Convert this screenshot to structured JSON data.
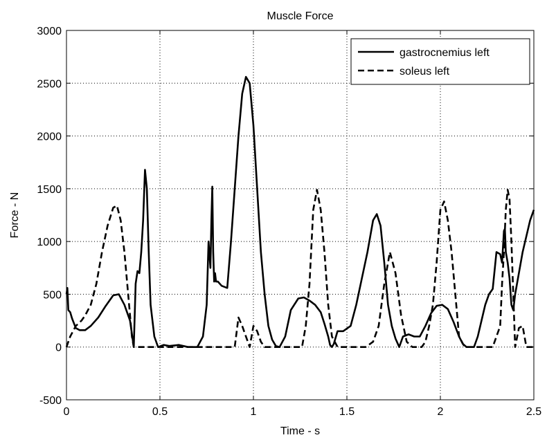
{
  "chart_data": {
    "type": "line",
    "title": "Muscle Force",
    "xlabel": "Time - s",
    "ylabel": "Force - N",
    "xlim": [
      0,
      2.5
    ],
    "ylim": [
      -500,
      3000
    ],
    "xticks": [
      0,
      0.5,
      1,
      1.5,
      2,
      2.5
    ],
    "xtick_labels": [
      "0",
      "0.5",
      "1",
      "1.5",
      "2",
      "2.5"
    ],
    "yticks": [
      -500,
      0,
      500,
      1000,
      1500,
      2000,
      2500,
      3000
    ],
    "ytick_labels": [
      "-500",
      "0",
      "500",
      "1000",
      "1500",
      "2000",
      "2500",
      "3000"
    ],
    "grid": true,
    "legend_position": "top-right",
    "series": [
      {
        "name": "gastrocnemius left",
        "style": "solid",
        "color": "#000000",
        "x": [
          0,
          0.005,
          0.01,
          0.02,
          0.03,
          0.05,
          0.07,
          0.1,
          0.13,
          0.17,
          0.21,
          0.25,
          0.28,
          0.31,
          0.34,
          0.36,
          0.37,
          0.38,
          0.39,
          0.4,
          0.41,
          0.42,
          0.43,
          0.44,
          0.45,
          0.47,
          0.49,
          0.52,
          0.55,
          0.6,
          0.65,
          0.7,
          0.73,
          0.75,
          0.76,
          0.77,
          0.775,
          0.78,
          0.785,
          0.79,
          0.795,
          0.8,
          0.81,
          0.83,
          0.86,
          0.88,
          0.9,
          0.92,
          0.94,
          0.96,
          0.98,
          0.99,
          1.0,
          1.02,
          1.04,
          1.06,
          1.08,
          1.1,
          1.12,
          1.14,
          1.17,
          1.2,
          1.24,
          1.27,
          1.3,
          1.33,
          1.36,
          1.38,
          1.4,
          1.41,
          1.42,
          1.43,
          1.45,
          1.48,
          1.52,
          1.55,
          1.58,
          1.61,
          1.64,
          1.66,
          1.68,
          1.7,
          1.72,
          1.74,
          1.76,
          1.78,
          1.8,
          1.83,
          1.86,
          1.89,
          1.92,
          1.95,
          1.98,
          2.01,
          2.04,
          2.07,
          2.1,
          2.12,
          2.14,
          2.16,
          2.18,
          2.2,
          2.22,
          2.24,
          2.26,
          2.28,
          2.3,
          2.32,
          2.33,
          2.34,
          2.345,
          2.35,
          2.36,
          2.37,
          2.38,
          2.39,
          2.4,
          2.42,
          2.44,
          2.46,
          2.48,
          2.5
        ],
        "y": [
          500,
          560,
          350,
          330,
          270,
          180,
          160,
          160,
          200,
          280,
          390,
          490,
          500,
          400,
          250,
          0,
          600,
          720,
          700,
          900,
          1200,
          1680,
          1500,
          900,
          400,
          100,
          0,
          20,
          10,
          20,
          0,
          0,
          100,
          400,
          1000,
          750,
          1200,
          1520,
          900,
          620,
          700,
          620,
          620,
          580,
          560,
          1000,
          1500,
          2000,
          2400,
          2560,
          2500,
          2300,
          2100,
          1500,
          900,
          500,
          200,
          70,
          10,
          0,
          100,
          350,
          460,
          470,
          440,
          400,
          330,
          220,
          100,
          20,
          0,
          30,
          150,
          150,
          200,
          400,
          650,
          900,
          1200,
          1260,
          1150,
          800,
          400,
          200,
          80,
          0,
          100,
          120,
          100,
          100,
          200,
          320,
          390,
          400,
          360,
          240,
          100,
          30,
          0,
          0,
          0,
          100,
          250,
          400,
          500,
          550,
          900,
          880,
          800,
          1100,
          1120,
          900,
          800,
          650,
          400,
          350,
          500,
          700,
          900,
          1050,
          1200,
          1300
        ]
      },
      {
        "name": "soleus left",
        "style": "dashed",
        "color": "#000000",
        "x": [
          0,
          0.02,
          0.05,
          0.08,
          0.1,
          0.13,
          0.16,
          0.19,
          0.22,
          0.25,
          0.27,
          0.29,
          0.31,
          0.33,
          0.35,
          0.36,
          0.37,
          0.4,
          0.45,
          0.5,
          0.6,
          0.7,
          0.8,
          0.88,
          0.9,
          0.92,
          0.94,
          0.96,
          0.98,
          1.0,
          1.02,
          1.04,
          1.06,
          1.08,
          1.1,
          1.12,
          1.14,
          1.16,
          1.18,
          1.2,
          1.22,
          1.24,
          1.26,
          1.28,
          1.3,
          1.32,
          1.34,
          1.36,
          1.38,
          1.4,
          1.42,
          1.45,
          1.5,
          1.55,
          1.6,
          1.64,
          1.67,
          1.7,
          1.73,
          1.76,
          1.79,
          1.82,
          1.85,
          1.88,
          1.9,
          1.92,
          1.94,
          1.96,
          1.98,
          2.0,
          2.02,
          2.04,
          2.06,
          2.08,
          2.1,
          2.13,
          2.16,
          2.2,
          2.22,
          2.24,
          2.26,
          2.28,
          2.3,
          2.32,
          2.33,
          2.34,
          2.35,
          2.36,
          2.37,
          2.38,
          2.4,
          2.42,
          2.44,
          2.46,
          2.48,
          2.5
        ],
        "y": [
          0,
          100,
          200,
          250,
          300,
          400,
          600,
          900,
          1150,
          1320,
          1340,
          1200,
          900,
          500,
          100,
          0,
          0,
          0,
          0,
          0,
          0,
          0,
          0,
          0,
          0,
          280,
          200,
          100,
          0,
          200,
          150,
          50,
          0,
          0,
          0,
          0,
          0,
          0,
          0,
          0,
          0,
          0,
          0,
          200,
          600,
          1300,
          1490,
          1300,
          900,
          400,
          100,
          0,
          0,
          0,
          0,
          50,
          200,
          600,
          900,
          700,
          300,
          50,
          0,
          0,
          0,
          50,
          200,
          400,
          800,
          1300,
          1380,
          1200,
          900,
          500,
          100,
          0,
          0,
          0,
          0,
          0,
          0,
          0,
          100,
          200,
          600,
          900,
          1300,
          1490,
          1400,
          1000,
          0,
          180,
          200,
          0,
          0,
          0
        ]
      }
    ]
  }
}
